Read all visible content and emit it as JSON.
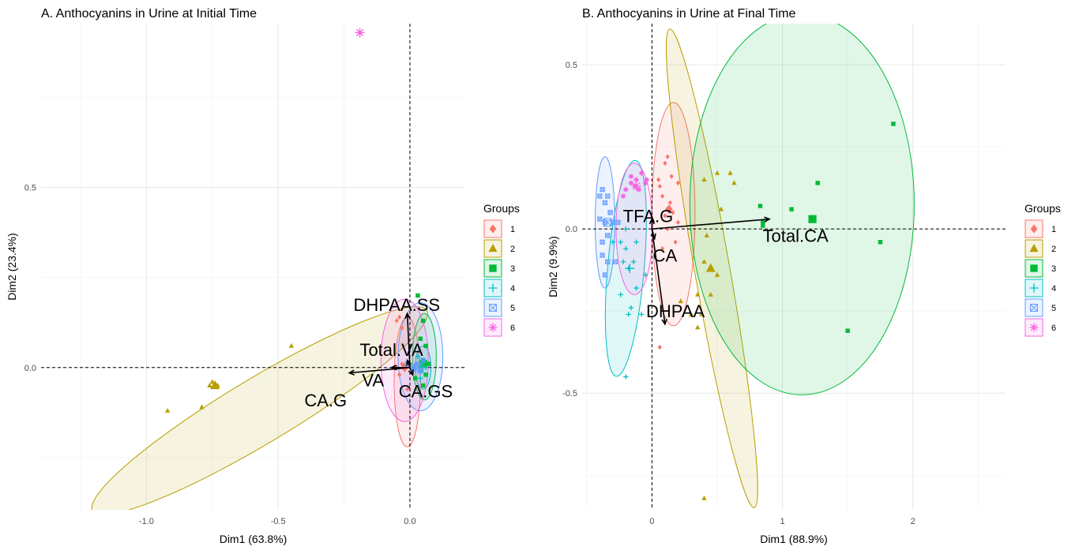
{
  "chart_data": [
    {
      "type": "scatter",
      "title": "A. Anthocyanins in Urine at Initial Time",
      "xlabel": "Dim1 (63.8%)",
      "ylabel": "Dim2 (23.4%)",
      "xlim": [
        -1.4,
        0.21
      ],
      "ylim": [
        -0.395,
        0.955
      ],
      "xticks": [
        -1.0,
        -0.5,
        0.0
      ],
      "xtick_labels": [
        "-1.0",
        "-0.5",
        "0.0"
      ],
      "yticks": [
        0.0,
        0.5
      ],
      "ytick_labels": [
        "0.0",
        "0.5"
      ],
      "minor_xticks": [
        -1.25,
        -0.75,
        -0.25
      ],
      "minor_yticks": [
        -0.25,
        0.25,
        0.75
      ],
      "legend": {
        "title": "Groups",
        "position": "right",
        "labels": [
          "1",
          "2",
          "3",
          "4",
          "5",
          "6"
        ]
      },
      "groups": [
        {
          "name": "1",
          "color": "#F8766D",
          "shape": "diamond",
          "points": [
            [
              -0.04,
              0.14
            ],
            [
              -0.05,
              0.13
            ],
            [
              -0.03,
              0.11
            ],
            [
              -0.02,
              0.0
            ],
            [
              -0.04,
              -0.02
            ],
            [
              -0.01,
              -0.06
            ],
            [
              -0.03,
              0.01
            ],
            [
              -0.05,
              0.0
            ]
          ],
          "centroid": [
            -0.02,
            0.0
          ],
          "ellipse": {
            "cx": -0.01,
            "cy": -0.04,
            "rx": 0.05,
            "ry": 0.18,
            "angle": 0
          }
        },
        {
          "name": "2",
          "color": "#B79F00",
          "shape": "triangle",
          "points": [
            [
              -0.92,
              -0.12
            ],
            [
              -0.79,
              -0.11
            ],
            [
              -0.75,
              -0.04
            ],
            [
              -0.73,
              -0.05
            ],
            [
              -0.45,
              0.06
            ],
            [
              -0.76,
              -0.05
            ]
          ],
          "centroid": [
            -0.74,
            -0.05
          ],
          "ellipse": {
            "cx": -0.57,
            "cy": -0.12,
            "rx": 0.74,
            "ry": 0.09,
            "angle": 31
          }
        },
        {
          "name": "3",
          "color": "#00BA38",
          "shape": "square",
          "points": [
            [
              0.03,
              0.2
            ],
            [
              0.05,
              0.13
            ],
            [
              0.04,
              0.08
            ],
            [
              0.06,
              0.06
            ],
            [
              0.05,
              0.02
            ],
            [
              0.06,
              -0.02
            ],
            [
              0.05,
              -0.05
            ],
            [
              0.07,
              0.01
            ],
            [
              0.02,
              -0.03
            ]
          ],
          "centroid": [
            0.05,
            0.01
          ],
          "ellipse": {
            "cx": 0.055,
            "cy": 0.03,
            "rx": 0.045,
            "ry": 0.12,
            "angle": 0
          }
        },
        {
          "name": "4",
          "color": "#00BFC4",
          "shape": "plus",
          "points": [
            [
              0.04,
              -0.01
            ],
            [
              0.05,
              0.02
            ],
            [
              0.06,
              0.0
            ],
            [
              0.03,
              0.03
            ],
            [
              0.04,
              -0.03
            ]
          ],
          "centroid": [
            0.05,
            0.0
          ],
          "ellipse": {
            "cx": 0.05,
            "cy": 0.0,
            "rx": 0.03,
            "ry": 0.06,
            "angle": 0
          }
        },
        {
          "name": "5",
          "color": "#619CFF",
          "shape": "square-cross",
          "points": [
            [
              0.02,
              0.0
            ],
            [
              0.04,
              -0.01
            ],
            [
              0.03,
              0.01
            ],
            [
              0.01,
              0.0
            ],
            [
              0.05,
              0.02
            ],
            [
              -0.01,
              0.01
            ]
          ],
          "centroid": [
            0.03,
            0.0
          ],
          "ellipse": {
            "cx": 0.04,
            "cy": 0.03,
            "rx": 0.085,
            "ry": 0.15,
            "angle": 0
          }
        },
        {
          "name": "6",
          "color": "#F564E3",
          "shape": "asterisk",
          "points": [
            [
              -0.19,
              0.93
            ]
          ],
          "centroid": [
            -0.19,
            0.93
          ],
          "ellipse": {
            "cx": -0.02,
            "cy": 0.02,
            "rx": 0.09,
            "ry": 0.17,
            "angle": 0
          }
        }
      ],
      "arrows": [
        {
          "label": "DHPAA.SS",
          "x": -0.01,
          "y": 0.15,
          "label_x": -0.05,
          "label_y": 0.175
        },
        {
          "label": "Total.VA",
          "x": -0.01,
          "y": 0.02,
          "label_x": -0.07,
          "label_y": 0.05
        },
        {
          "label": "VA",
          "x": -0.07,
          "y": 0.0,
          "label_x": -0.14,
          "label_y": -0.035
        },
        {
          "label": "CA.G",
          "x": -0.23,
          "y": -0.015,
          "label_x": -0.32,
          "label_y": -0.09
        },
        {
          "label": "CA.GS",
          "x": 0.01,
          "y": -0.02,
          "label_x": 0.06,
          "label_y": -0.065
        }
      ]
    },
    {
      "type": "scatter",
      "title": "B. Anthocyanins in Urine at Final Time",
      "xlabel": "Dim1 (88.9%)",
      "ylabel": "Dim2 (9.9%)",
      "xlim": [
        -0.535,
        2.71
      ],
      "ylim": [
        -0.855,
        0.625
      ],
      "xticks": [
        0,
        1,
        2
      ],
      "xtick_labels": [
        "0",
        "1",
        "2"
      ],
      "yticks": [
        -0.5,
        0.0,
        0.5
      ],
      "ytick_labels": [
        "-0.5",
        "0.0",
        "0.5"
      ],
      "minor_xticks": [
        -0.5,
        0.5,
        1.5,
        2.5
      ],
      "minor_yticks": [
        -0.75,
        -0.25,
        0.25
      ],
      "legend": {
        "title": "Groups",
        "position": "right",
        "labels": [
          "1",
          "2",
          "3",
          "4",
          "5",
          "6"
        ]
      },
      "groups": [
        {
          "name": "1",
          "color": "#F8766D",
          "shape": "diamond",
          "points": [
            [
              0.05,
              0.15
            ],
            [
              0.1,
              0.2
            ],
            [
              0.15,
              0.16
            ],
            [
              0.2,
              0.14
            ],
            [
              0.08,
              0.1
            ],
            [
              0.14,
              0.08
            ],
            [
              0.16,
              0.05
            ],
            [
              0.2,
              0.02
            ],
            [
              0.1,
              0.04
            ],
            [
              0.12,
              0.0
            ],
            [
              0.18,
              -0.04
            ],
            [
              0.08,
              -0.06
            ],
            [
              0.06,
              0.13
            ],
            [
              0.12,
              0.22
            ],
            [
              0.06,
              -0.36
            ]
          ],
          "centroid": [
            0.13,
            0.06
          ],
          "ellipse": {
            "cx": 0.165,
            "cy": 0.045,
            "rx": 0.165,
            "ry": 0.34,
            "angle": 0
          }
        },
        {
          "name": "2",
          "color": "#B79F00",
          "shape": "triangle",
          "points": [
            [
              0.4,
              0.15
            ],
            [
              0.5,
              0.17
            ],
            [
              0.6,
              0.17
            ],
            [
              0.63,
              0.14
            ],
            [
              0.53,
              0.06
            ],
            [
              0.42,
              -0.02
            ],
            [
              0.4,
              -0.1
            ],
            [
              0.5,
              -0.14
            ],
            [
              0.35,
              -0.2
            ],
            [
              0.3,
              -0.26
            ],
            [
              0.35,
              -0.3
            ],
            [
              0.38,
              -0.26
            ],
            [
              0.45,
              -0.2
            ],
            [
              0.22,
              -0.22
            ],
            [
              0.4,
              -0.82
            ]
          ],
          "centroid": [
            0.45,
            -0.12
          ],
          "ellipse": {
            "cx": 0.46,
            "cy": -0.12,
            "rx": 0.135,
            "ry": 0.74,
            "angle": 10
          }
        },
        {
          "name": "3",
          "color": "#00BA38",
          "shape": "square",
          "points": [
            [
              1.85,
              0.32
            ],
            [
              1.27,
              0.14
            ],
            [
              0.83,
              0.07
            ],
            [
              1.07,
              0.06
            ],
            [
              0.85,
              0.01
            ],
            [
              1.75,
              -0.04
            ],
            [
              1.5,
              -0.31
            ],
            [
              0.85,
              0.02
            ]
          ],
          "centroid": [
            1.23,
            0.03
          ],
          "ellipse": {
            "cx": 1.15,
            "cy": 0.075,
            "rx": 0.86,
            "ry": 0.58,
            "angle": 0
          }
        },
        {
          "name": "4",
          "color": "#00BFC4",
          "shape": "plus",
          "points": [
            [
              -0.3,
              -0.04
            ],
            [
              -0.24,
              -0.04
            ],
            [
              -0.2,
              -0.06
            ],
            [
              -0.12,
              -0.04
            ],
            [
              -0.18,
              -0.12
            ],
            [
              -0.14,
              -0.1
            ],
            [
              -0.05,
              -0.14
            ],
            [
              -0.12,
              -0.18
            ],
            [
              -0.08,
              -0.26
            ],
            [
              -0.16,
              -0.24
            ],
            [
              -0.24,
              -0.2
            ],
            [
              -0.18,
              -0.26
            ],
            [
              -0.2,
              0.0
            ],
            [
              -0.2,
              -0.45
            ],
            [
              -0.22,
              -0.1
            ]
          ],
          "centroid": [
            -0.17,
            -0.12
          ],
          "ellipse": {
            "cx": -0.2,
            "cy": -0.12,
            "rx": 0.14,
            "ry": 0.33,
            "angle": -5
          }
        },
        {
          "name": "5",
          "color": "#619CFF",
          "shape": "square-cross",
          "points": [
            [
              -0.4,
              0.1
            ],
            [
              -0.38,
              0.12
            ],
            [
              -0.36,
              0.08
            ],
            [
              -0.34,
              0.1
            ],
            [
              -0.4,
              0.03
            ],
            [
              -0.36,
              0.02
            ],
            [
              -0.3,
              0.02
            ],
            [
              -0.26,
              0.02
            ],
            [
              -0.34,
              -0.02
            ],
            [
              -0.38,
              -0.08
            ],
            [
              -0.34,
              -0.1
            ],
            [
              -0.28,
              -0.1
            ],
            [
              -0.36,
              -0.14
            ],
            [
              -0.38,
              -0.04
            ],
            [
              -0.32,
              0.05
            ]
          ],
          "centroid": [
            -0.34,
            0.02
          ],
          "ellipse": {
            "cx": -0.36,
            "cy": 0.02,
            "rx": 0.075,
            "ry": 0.2,
            "angle": 0
          }
        },
        {
          "name": "6",
          "color": "#F564E3",
          "shape": "asterisk",
          "points": [
            [
              -0.16,
              0.14
            ],
            [
              -0.13,
              0.13
            ],
            [
              -0.1,
              0.12
            ],
            [
              -0.05,
              0.14
            ],
            [
              -0.2,
              0.12
            ],
            [
              -0.16,
              0.16
            ],
            [
              -0.12,
              0.15
            ],
            [
              -0.08,
              0.17
            ],
            [
              -0.04,
              0.15
            ],
            [
              -0.22,
              0.1
            ]
          ],
          "centroid": [
            -0.12,
            0.13
          ],
          "ellipse": {
            "cx": -0.135,
            "cy": 0.0,
            "rx": 0.14,
            "ry": 0.2,
            "angle": 0
          }
        }
      ],
      "arrows": [
        {
          "label": "TFA.G",
          "x": 0.0,
          "y": 0.03,
          "label_x": -0.03,
          "label_y": 0.04
        },
        {
          "label": "Total.CA",
          "x": 0.9,
          "y": 0.03,
          "label_x": 1.1,
          "label_y": -0.02
        },
        {
          "label": "CA",
          "x": 0.02,
          "y": -0.03,
          "label_x": 0.1,
          "label_y": -0.08
        },
        {
          "label": "DHPAA",
          "x": 0.1,
          "y": -0.29,
          "label_x": 0.18,
          "label_y": -0.25
        }
      ]
    }
  ]
}
